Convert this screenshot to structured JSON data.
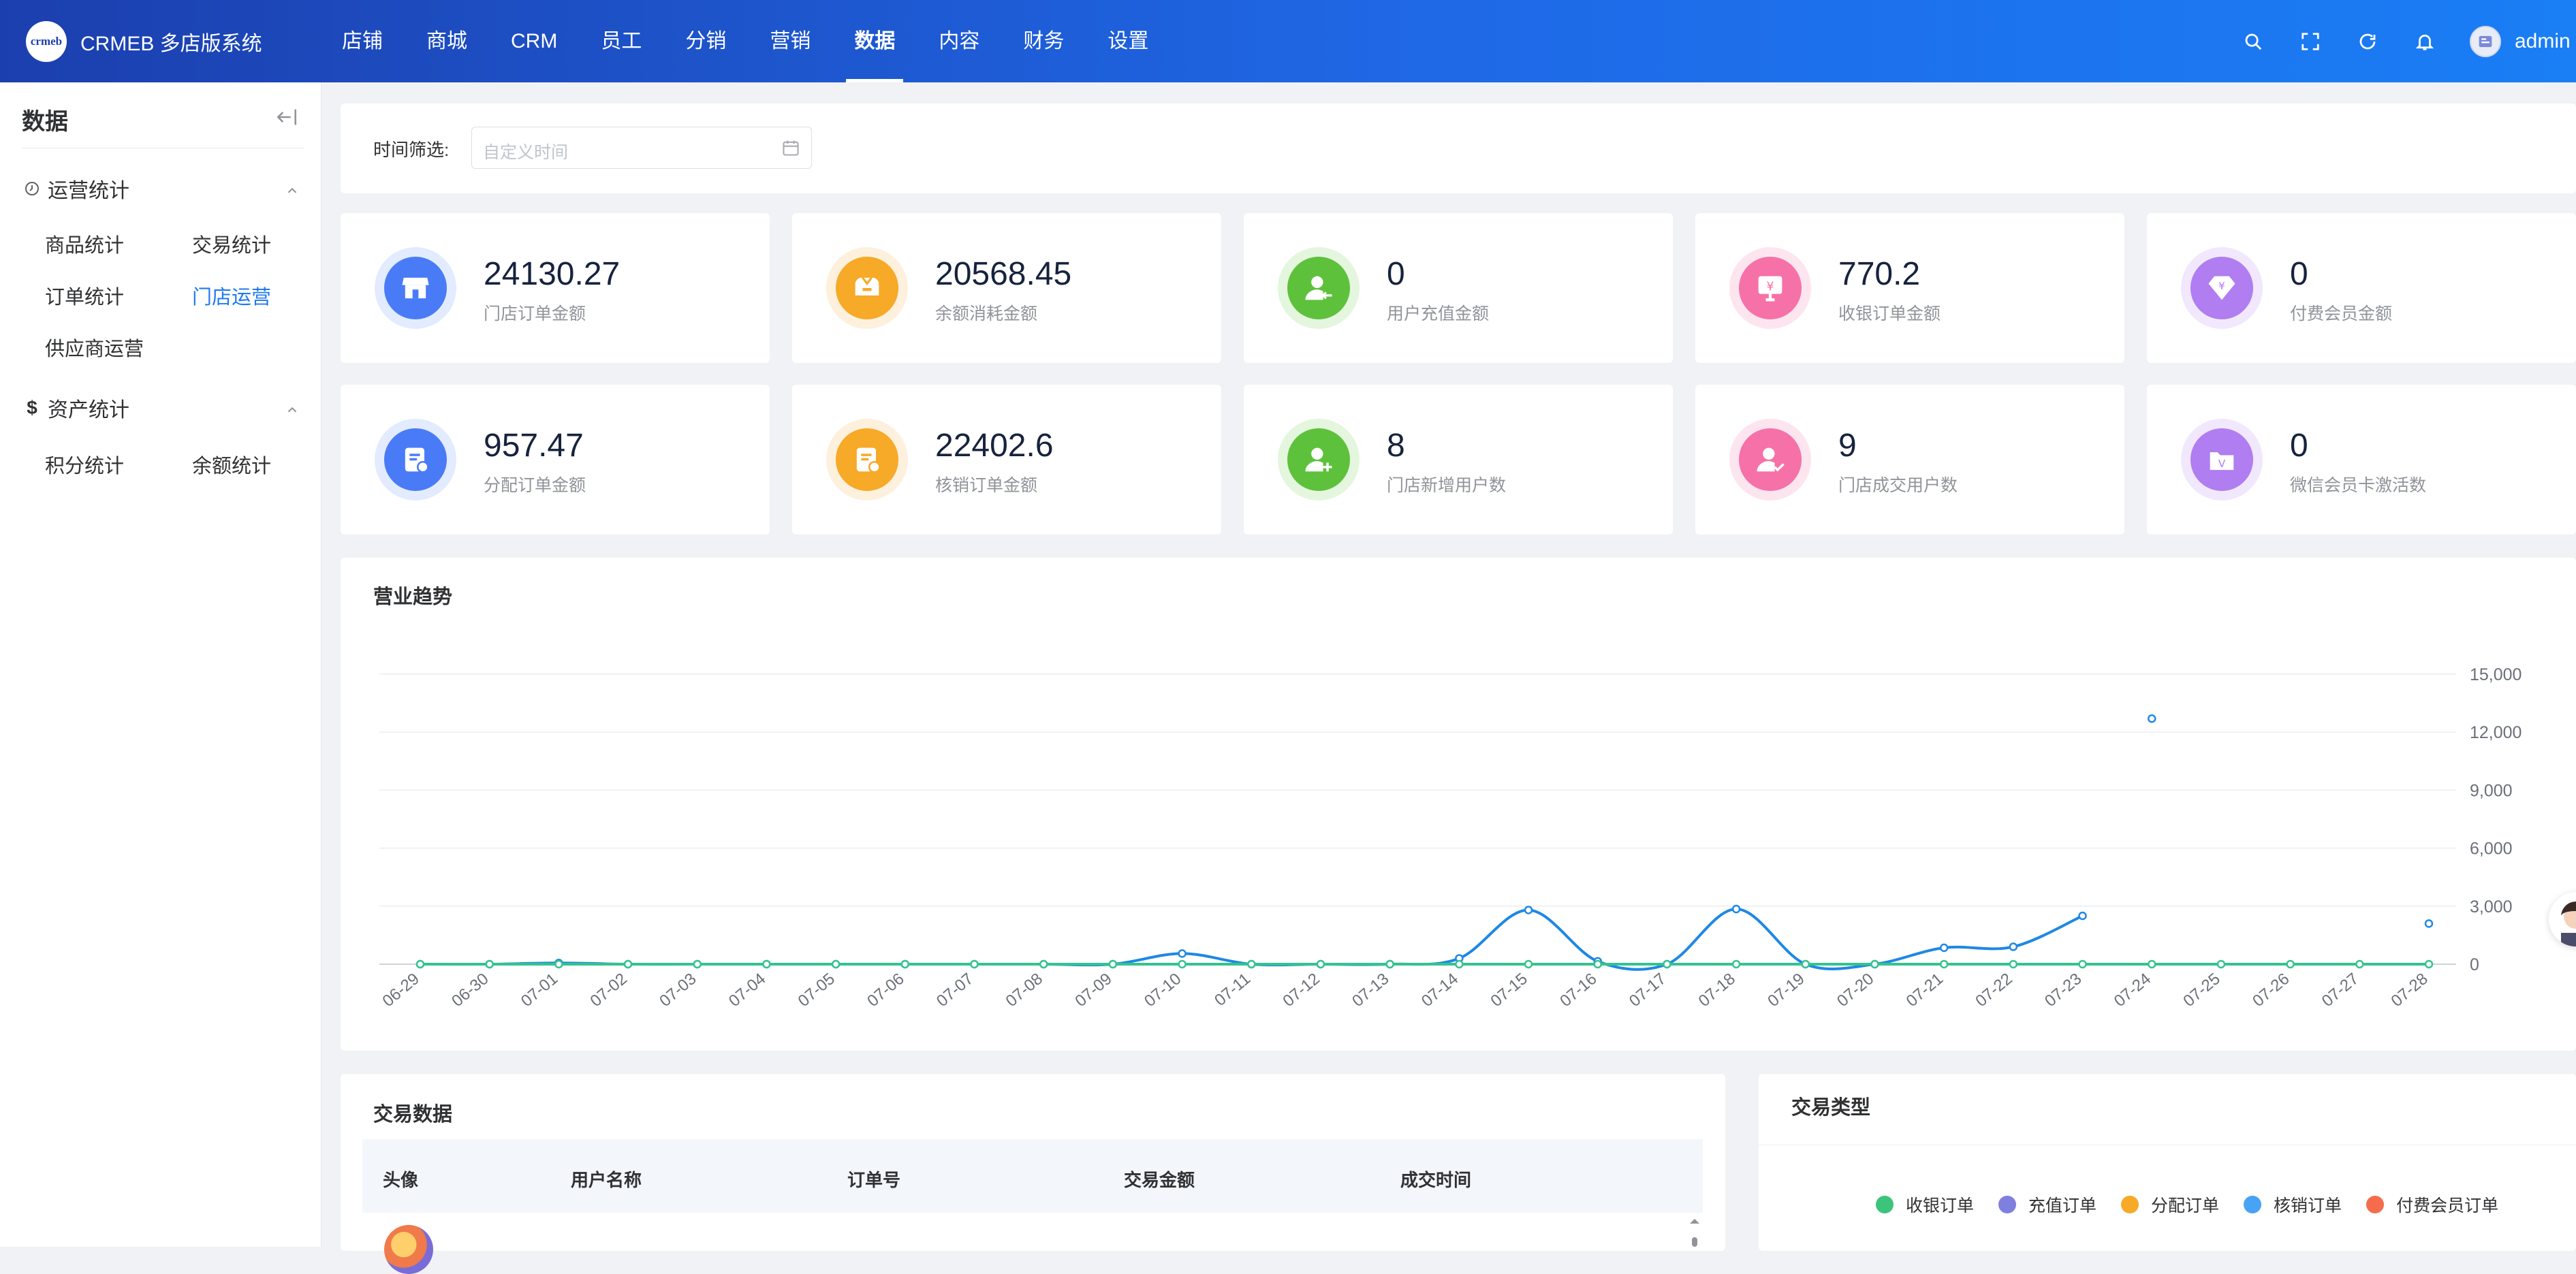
{
  "brand": {
    "logo_text": "crmeb",
    "title": "CRMEB 多店版系统"
  },
  "nav": [
    {
      "label": "店铺",
      "active": false
    },
    {
      "label": "商城",
      "active": false
    },
    {
      "label": "CRM",
      "active": false
    },
    {
      "label": "员工",
      "active": false
    },
    {
      "label": "分销",
      "active": false
    },
    {
      "label": "营销",
      "active": false
    },
    {
      "label": "数据",
      "active": true
    },
    {
      "label": "内容",
      "active": false
    },
    {
      "label": "财务",
      "active": false
    },
    {
      "label": "设置",
      "active": false
    }
  ],
  "header": {
    "icons": [
      "search-icon",
      "fullscreen-icon",
      "refresh-icon",
      "bell-icon"
    ],
    "user": "admin"
  },
  "sidebar": {
    "title": "数据",
    "groups": [
      {
        "label": "运营统计",
        "icon": "clock-icon",
        "items": [
          {
            "label": "商品统计",
            "active": false
          },
          {
            "label": "交易统计",
            "active": false
          },
          {
            "label": "订单统计",
            "active": false
          },
          {
            "label": "门店运营",
            "active": true
          },
          {
            "label": "供应商运营",
            "active": false
          }
        ]
      },
      {
        "label": "资产统计",
        "icon": "dollar-icon",
        "items": [
          {
            "label": "积分统计",
            "active": false
          },
          {
            "label": "余额统计",
            "active": false
          }
        ]
      }
    ]
  },
  "filter": {
    "label": "时间筛选:",
    "placeholder": "自定义时间"
  },
  "stats": [
    {
      "value": "24130.27",
      "label": "门店订单金额",
      "color": "#4a7bf7",
      "ring": "#e3ebfe",
      "icon": "store-icon"
    },
    {
      "value": "20568.45",
      "label": "余额消耗金额",
      "color": "#f7a928",
      "ring": "#fdf1dd",
      "icon": "wallet-icon"
    },
    {
      "value": "0",
      "label": "用户充值金额",
      "color": "#5ec13c",
      "ring": "#e4f6de",
      "icon": "user-recharge-icon"
    },
    {
      "value": "770.2",
      "label": "收银订单金额",
      "color": "#f671a8",
      "ring": "#fde5ef",
      "icon": "cashier-icon"
    },
    {
      "value": "0",
      "label": "付费会员金额",
      "color": "#b07ef0",
      "ring": "#f1e8fd",
      "icon": "vip-diamond-icon"
    },
    {
      "value": "957.47",
      "label": "分配订单金额",
      "color": "#4a7bf7",
      "ring": "#e3ebfe",
      "icon": "assign-order-icon"
    },
    {
      "value": "22402.6",
      "label": "核销订单金额",
      "color": "#f7a928",
      "ring": "#fdf1dd",
      "icon": "verify-order-icon"
    },
    {
      "value": "8",
      "label": "门店新增用户数",
      "color": "#5ec13c",
      "ring": "#e4f6de",
      "icon": "user-add-icon"
    },
    {
      "value": "9",
      "label": "门店成交用户数",
      "color": "#f671a8",
      "ring": "#fde5ef",
      "icon": "user-check-icon"
    },
    {
      "value": "0",
      "label": "微信会员卡激活数",
      "color": "#b07ef0",
      "ring": "#f1e8fd",
      "icon": "member-card-icon"
    }
  ],
  "trend": {
    "title": "营业趋势",
    "chart_data": {
      "type": "line",
      "x": [
        "06-29",
        "06-30",
        "07-01",
        "07-02",
        "07-03",
        "07-04",
        "07-05",
        "07-06",
        "07-07",
        "07-08",
        "07-09",
        "07-10",
        "07-11",
        "07-12",
        "07-13",
        "07-14",
        "07-15",
        "07-16",
        "07-17",
        "07-18",
        "07-19",
        "07-20",
        "07-21",
        "07-22",
        "07-23",
        "07-24",
        "07-25",
        "07-26",
        "07-27",
        "07-28"
      ],
      "yticks": [
        "0",
        "3,000",
        "6,000",
        "9,000",
        "12,000",
        "15,000"
      ],
      "ylim": [
        0,
        15000
      ],
      "series": [
        {
          "color": "#1e88e5",
          "values": [
            0,
            0,
            60,
            0,
            0,
            0,
            0,
            0,
            0,
            0,
            0,
            550,
            0,
            0,
            0,
            300,
            2800,
            150,
            0,
            2850,
            0,
            0,
            850,
            900,
            2500,
            null,
            null,
            null,
            null,
            null
          ]
        },
        {
          "color": "#34c38f",
          "values": [
            0,
            0,
            0,
            0,
            0,
            0,
            0,
            0,
            0,
            0,
            0,
            0,
            0,
            0,
            0,
            0,
            0,
            0,
            0,
            0,
            0,
            0,
            0,
            0,
            0,
            0,
            0,
            0,
            0,
            0
          ]
        },
        {
          "color": "#1e88e5",
          "values": [
            null,
            null,
            null,
            null,
            null,
            null,
            null,
            null,
            null,
            null,
            null,
            null,
            null,
            null,
            null,
            null,
            null,
            null,
            null,
            null,
            null,
            null,
            null,
            null,
            null,
            12700,
            null,
            null,
            null,
            2100
          ],
          "points_only": true
        }
      ]
    }
  },
  "transactions": {
    "title": "交易数据",
    "columns": [
      "头像",
      "用户名称",
      "订单号",
      "交易金额",
      "成交时间"
    ]
  },
  "tx_types": {
    "title": "交易类型",
    "legend": [
      {
        "label": "收银订单",
        "color": "#3cc47c"
      },
      {
        "label": "充值订单",
        "color": "#7f7fe0"
      },
      {
        "label": "分配订单",
        "color": "#f7a928"
      },
      {
        "label": "核销订单",
        "color": "#47a3f5"
      },
      {
        "label": "付费会员订单",
        "color": "#f56c4c"
      }
    ]
  }
}
